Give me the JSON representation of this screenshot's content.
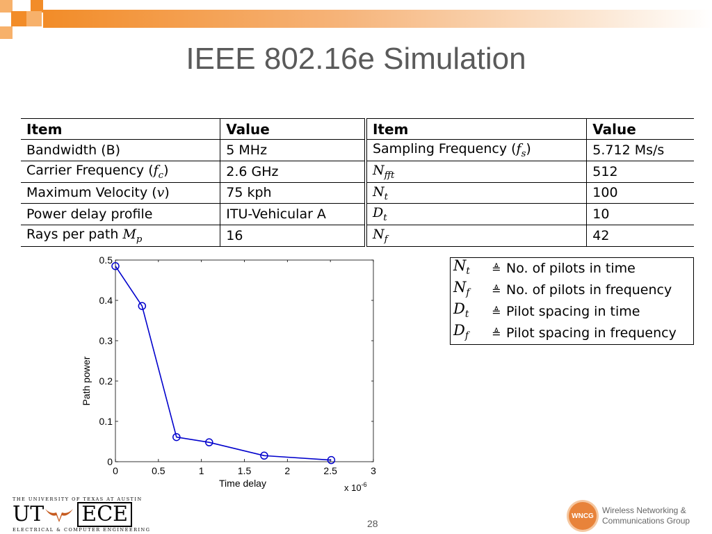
{
  "slide": {
    "title": "IEEE 802.16e Simulation",
    "page_number": "28"
  },
  "colors": {
    "accent_orange": "#f28c28",
    "title_gray": "#5a5a5a",
    "series_blue": "#0000cc"
  },
  "params_table": {
    "headers": [
      "Item",
      "Value",
      "Item",
      "Value"
    ],
    "rows": [
      {
        "item1": "Bandwidth (B)",
        "value1": "5 MHz",
        "item2_text": "Sampling Frequency (",
        "item2_sym": "f",
        "item2_sub": "s",
        "item2_tail": ")",
        "value2": "5.712 Ms/s"
      },
      {
        "item1_text": "Carrier Frequency (",
        "item1_sym": "f",
        "item1_sub": "c",
        "item1_tail": ")",
        "value1": "2.6 GHz",
        "item2_sym": "N",
        "item2_sub": "fft",
        "value2": "512"
      },
      {
        "item1_text": "Maximum Velocity (",
        "item1_sym": "v",
        "item1_tail": ")",
        "value1": "75 kph",
        "item2_sym": "N",
        "item2_sub": "t",
        "value2": "100"
      },
      {
        "item1": "Power delay profile",
        "value1": "ITU-Vehicular A",
        "item2_sym": "D",
        "item2_sub": "t",
        "value2": "10"
      },
      {
        "item1_text": "Rays per path ",
        "item1_sym": "M",
        "item1_sub": "p",
        "value1": "16",
        "item2_sym": "N",
        "item2_sub": "f",
        "value2": "42"
      }
    ]
  },
  "definitions": [
    {
      "sym": "N",
      "sub": "t",
      "eq": "≜",
      "text": "No.  of pilots in time"
    },
    {
      "sym": "N",
      "sub": "f",
      "eq": "≜",
      "text": "No.  of pilots in frequency"
    },
    {
      "sym": "D",
      "sub": "t",
      "eq": "≜",
      "text": "Pilot spacing in time"
    },
    {
      "sym": "D",
      "sub": "f",
      "eq": "≜",
      "text": "Pilot spacing in frequency"
    }
  ],
  "chart_data": {
    "type": "line",
    "xlabel": "Time delay",
    "ylabel": "Path power",
    "x_multiplier": "x 10",
    "x_multiplier_exp": "-6",
    "xlim": [
      0,
      3
    ],
    "ylim": [
      0,
      0.5
    ],
    "xticks": [
      "0",
      "0.5",
      "1",
      "1.5",
      "2",
      "2.5",
      "3"
    ],
    "yticks": [
      "0",
      "0.1",
      "0.2",
      "0.3",
      "0.4",
      "0.5"
    ],
    "grid": false,
    "marker": "circle",
    "series": [
      {
        "x": [
          0,
          0.31,
          0.71,
          1.09,
          1.73,
          2.51
        ],
        "y": [
          0.485,
          0.386,
          0.061,
          0.048,
          0.015,
          0.004
        ]
      }
    ]
  },
  "footer": {
    "ut_banner": "THE UNIVERSITY OF TEXAS AT AUSTIN",
    "ut_letters": "UT",
    "ece_letters": "ECE",
    "ut_sub": "ELECTRICAL & COMPUTER ENGINEERING",
    "wncg_badge": "WNCG",
    "wncg_line1": "Wireless Networking &",
    "wncg_line2": "Communications Group"
  }
}
